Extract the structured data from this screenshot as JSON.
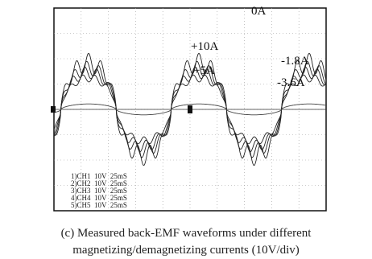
{
  "waveform_labels": [
    "+10A",
    "0A",
    "-1.8A",
    "+5A",
    "-3.6A"
  ],
  "channels": [
    "1)CH1  10V  25mS",
    "2)CH2  10V  25mS",
    "3)CH3  10V  25mS",
    "4)CH4  10V  25mS",
    "5)CH5  10V  25mS"
  ],
  "caption": [
    "(c) Measured back-EMF waveforms under different",
    "magnetizing/demagnetizing currents (10V/div)"
  ]
}
